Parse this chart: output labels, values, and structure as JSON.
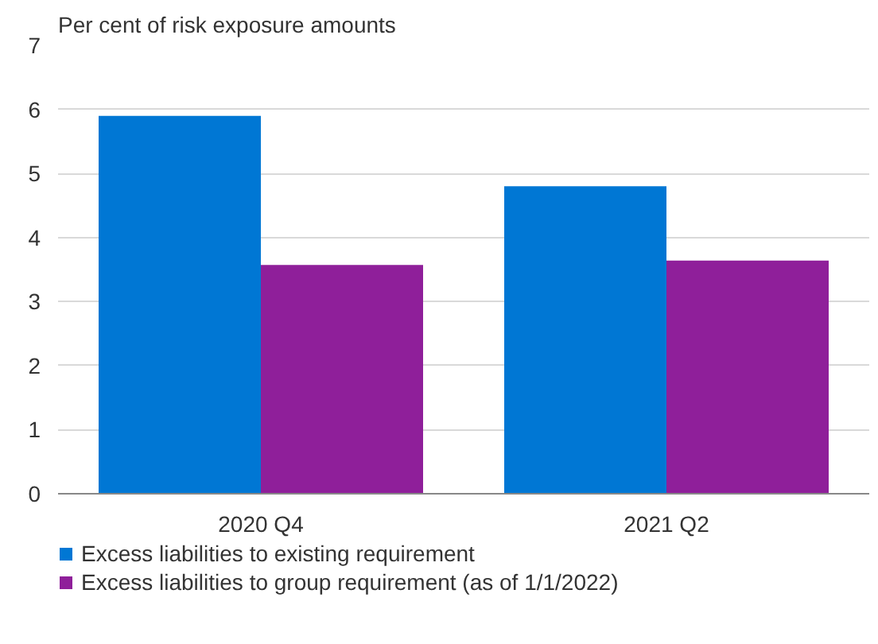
{
  "chart_data": {
    "type": "bar",
    "ylabel": "Per cent of risk exposure amounts",
    "categories": [
      "2020 Q4",
      "2021 Q2"
    ],
    "series": [
      {
        "name": "Excess liabilities to existing requirement",
        "color": "#0077d4",
        "values": [
          5.9,
          4.8
        ]
      },
      {
        "name": "Excess liabilities to group requirement (as of 1/1/2022)",
        "color": "#8f1f9a",
        "values": [
          3.57,
          3.64
        ]
      }
    ],
    "ylim": [
      0,
      7
    ],
    "yticks": [
      0,
      1,
      2,
      3,
      4,
      5,
      6,
      7
    ],
    "grid": "y",
    "legend": "bottom"
  }
}
